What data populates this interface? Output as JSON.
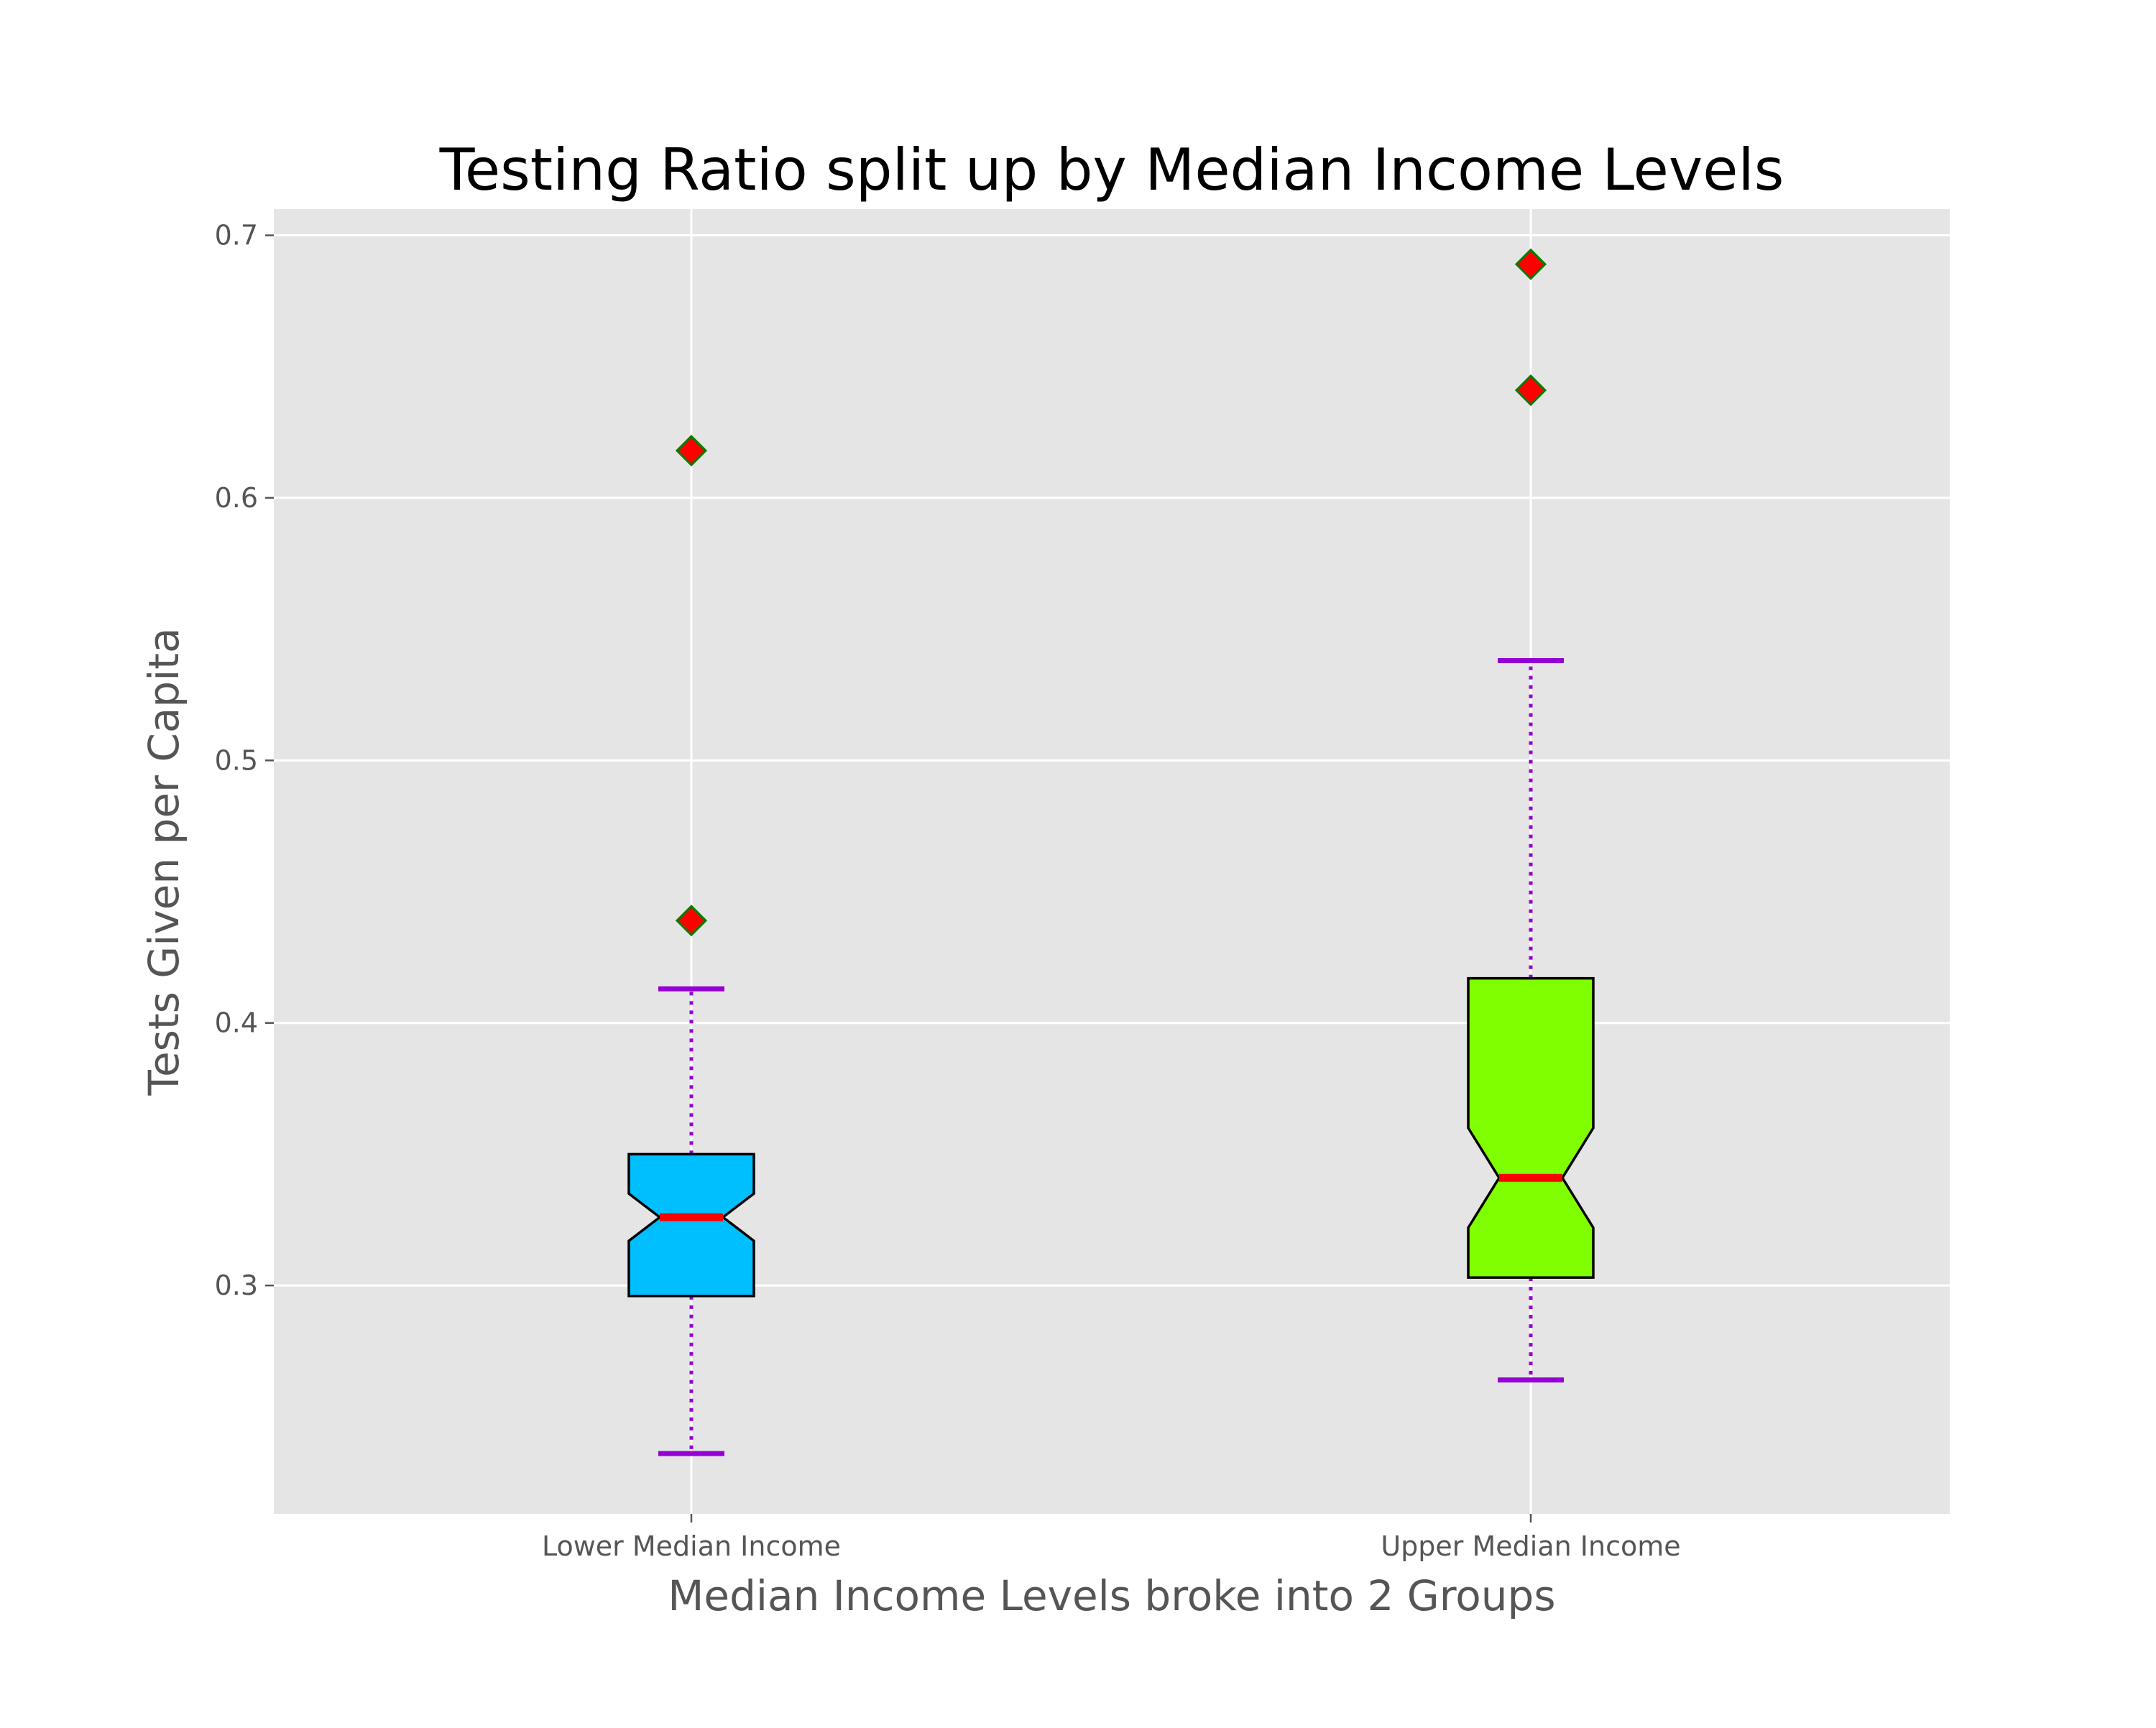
{
  "chart_data": {
    "type": "boxplot",
    "title": "Testing Ratio split up by Median Income Levels",
    "xlabel": "Median Income Levels broke into 2 Groups",
    "ylabel": "Tests Given per Capita",
    "ylim": [
      0.213,
      0.71
    ],
    "yticks": [
      "0.3",
      "0.4",
      "0.5",
      "0.6",
      "0.7"
    ],
    "ytick_values": [
      0.3,
      0.4,
      0.5,
      0.6,
      0.7
    ],
    "grid": true,
    "notched": true,
    "categories": [
      "Lower Median Income",
      "Upper Median Income"
    ],
    "boxes": [
      {
        "category": "Lower Median Income",
        "whisker_low": 0.236,
        "q1": 0.296,
        "median": 0.326,
        "q3": 0.35,
        "whisker_high": 0.413,
        "notch_low": 0.317,
        "notch_high": 0.335,
        "outliers": [
          0.439,
          0.618
        ],
        "fill_color": "#00bfff"
      },
      {
        "category": "Upper Median Income",
        "whisker_low": 0.264,
        "q1": 0.303,
        "median": 0.341,
        "q3": 0.417,
        "whisker_high": 0.538,
        "notch_low": 0.322,
        "notch_high": 0.36,
        "outliers": [
          0.641,
          0.689
        ],
        "fill_color": "#7fff00"
      }
    ],
    "colors": {
      "plot_background": "#e5e5e5",
      "grid": "#ffffff",
      "median": "#ff0000",
      "whisker": "#9400d3",
      "box_edge": "#000000",
      "outlier_fill": "#ff0000",
      "outlier_edge": "#008000"
    }
  }
}
